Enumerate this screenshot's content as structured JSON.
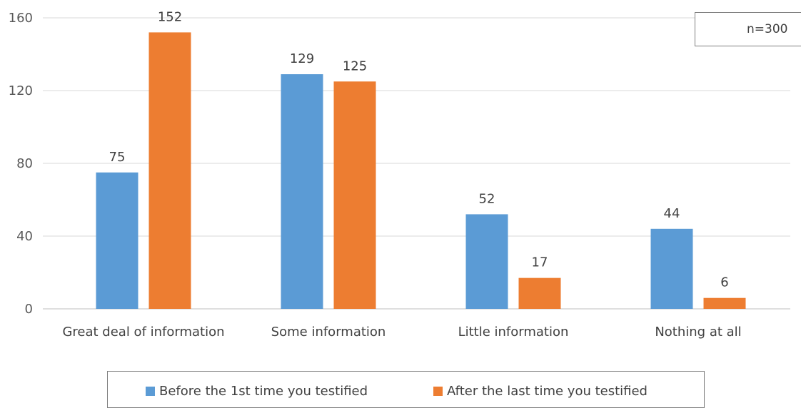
{
  "chart_data": {
    "type": "bar",
    "categories": [
      "Great deal of information",
      "Some information",
      "Little information",
      "Nothing at all"
    ],
    "series": [
      {
        "name": "Before the 1st time you testified",
        "color": "#5b9bd5",
        "values": [
          75,
          129,
          52,
          44
        ]
      },
      {
        "name": "After the last time you testified",
        "color": "#ed7d31",
        "values": [
          152,
          125,
          17,
          6
        ]
      }
    ],
    "ylim": [
      0,
      160
    ],
    "yticks": [
      0,
      40,
      80,
      120,
      160
    ],
    "grid": true,
    "legend_position": "bottom",
    "annotation": "n=300"
  }
}
